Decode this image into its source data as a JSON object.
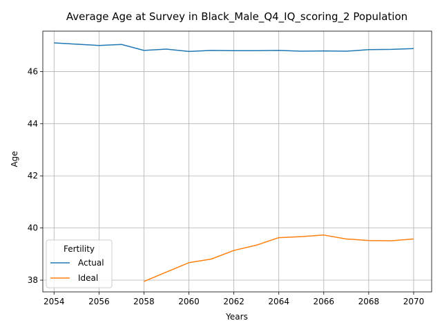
{
  "chart_data": {
    "type": "line",
    "title": "Average Age at Survey in Black_Male_Q4_IQ_scoring_2 Population",
    "xlabel": "Years",
    "ylabel": "Age",
    "xlim": [
      2053.5,
      2070.8
    ],
    "ylim": [
      37.55,
      47.55
    ],
    "xticks": [
      2054,
      2056,
      2058,
      2060,
      2062,
      2064,
      2066,
      2068,
      2070
    ],
    "yticks": [
      38,
      40,
      42,
      44,
      46
    ],
    "grid": true,
    "legend": {
      "title": "Fertility",
      "placement": "lower-left"
    },
    "series": [
      {
        "name": "Actual",
        "color": "#1f77b4",
        "x": [
          2054,
          2055,
          2056,
          2057,
          2058,
          2059,
          2060,
          2061,
          2062,
          2063,
          2064,
          2065,
          2066,
          2067,
          2068,
          2069,
          2070
        ],
        "y": [
          47.1,
          47.05,
          47.0,
          47.04,
          46.81,
          46.86,
          46.77,
          46.81,
          46.8,
          46.8,
          46.81,
          46.78,
          46.79,
          46.78,
          46.84,
          46.85,
          46.88
        ]
      },
      {
        "name": "Ideal",
        "color": "#ff7f0e",
        "x": [
          2058,
          2059,
          2060,
          2061,
          2062,
          2063,
          2064,
          2065,
          2066,
          2067,
          2068,
          2069,
          2070
        ],
        "y": [
          37.95,
          38.31,
          38.67,
          38.81,
          39.14,
          39.34,
          39.63,
          39.67,
          39.73,
          39.58,
          39.52,
          39.51,
          39.58
        ]
      }
    ]
  }
}
